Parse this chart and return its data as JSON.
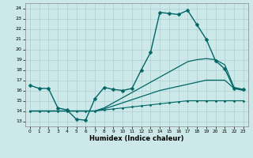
{
  "xlabel": "Humidex (Indice chaleur)",
  "xlim": [
    -0.5,
    23.5
  ],
  "ylim": [
    12.5,
    24.5
  ],
  "yticks": [
    13,
    14,
    15,
    16,
    17,
    18,
    19,
    20,
    21,
    22,
    23,
    24
  ],
  "xticks": [
    0,
    1,
    2,
    3,
    4,
    5,
    6,
    7,
    8,
    9,
    10,
    11,
    12,
    13,
    14,
    15,
    16,
    17,
    18,
    19,
    20,
    21,
    22,
    23
  ],
  "bg_color": "#cce8e8",
  "grid_color": "#aacfcf",
  "line_color": "#006666",
  "lines": [
    {
      "x": [
        0,
        1,
        2,
        3,
        4,
        5,
        6,
        7,
        8,
        9,
        10,
        11,
        12,
        13,
        14,
        15,
        16,
        17,
        18,
        19,
        20,
        21,
        22,
        23
      ],
      "y": [
        16.5,
        16.2,
        16.2,
        14.3,
        14.1,
        13.2,
        13.1,
        15.2,
        16.3,
        16.1,
        16.0,
        16.2,
        18.0,
        19.7,
        23.6,
        23.5,
        23.4,
        23.8,
        22.4,
        21.0,
        18.9,
        18.1,
        16.2,
        16.1
      ],
      "marker": "D",
      "markersize": 2.5,
      "linewidth": 1.0,
      "has_marker": true
    },
    {
      "x": [
        0,
        1,
        2,
        3,
        4,
        5,
        6,
        7,
        8,
        9,
        10,
        11,
        12,
        13,
        14,
        15,
        16,
        17,
        18,
        19,
        20,
        21,
        22,
        23
      ],
      "y": [
        14.0,
        14.0,
        14.0,
        14.0,
        14.0,
        14.0,
        14.0,
        14.0,
        14.1,
        14.2,
        14.3,
        14.4,
        14.5,
        14.6,
        14.7,
        14.8,
        14.9,
        15.0,
        15.0,
        15.0,
        15.0,
        15.0,
        15.0,
        15.0
      ],
      "marker": "D",
      "markersize": 1.5,
      "linewidth": 0.8,
      "has_marker": true
    },
    {
      "x": [
        0,
        1,
        2,
        3,
        4,
        5,
        6,
        7,
        8,
        9,
        10,
        11,
        12,
        13,
        14,
        15,
        16,
        17,
        18,
        19,
        20,
        21,
        22,
        23
      ],
      "y": [
        14.0,
        14.0,
        14.0,
        14.0,
        14.0,
        14.0,
        14.0,
        14.0,
        14.2,
        14.5,
        14.8,
        15.1,
        15.4,
        15.7,
        16.0,
        16.2,
        16.4,
        16.6,
        16.8,
        17.0,
        17.0,
        17.0,
        16.2,
        16.0
      ],
      "marker": null,
      "markersize": 0,
      "linewidth": 0.9,
      "has_marker": false
    },
    {
      "x": [
        0,
        1,
        2,
        3,
        4,
        5,
        6,
        7,
        8,
        9,
        10,
        11,
        12,
        13,
        14,
        15,
        16,
        17,
        18,
        19,
        20,
        21,
        22,
        23
      ],
      "y": [
        14.0,
        14.0,
        14.0,
        14.0,
        14.0,
        14.0,
        14.0,
        14.0,
        14.3,
        14.8,
        15.3,
        15.8,
        16.3,
        16.8,
        17.3,
        17.8,
        18.3,
        18.8,
        19.0,
        19.1,
        19.0,
        18.5,
        16.3,
        16.1
      ],
      "marker": null,
      "markersize": 0,
      "linewidth": 0.9,
      "has_marker": false
    }
  ]
}
